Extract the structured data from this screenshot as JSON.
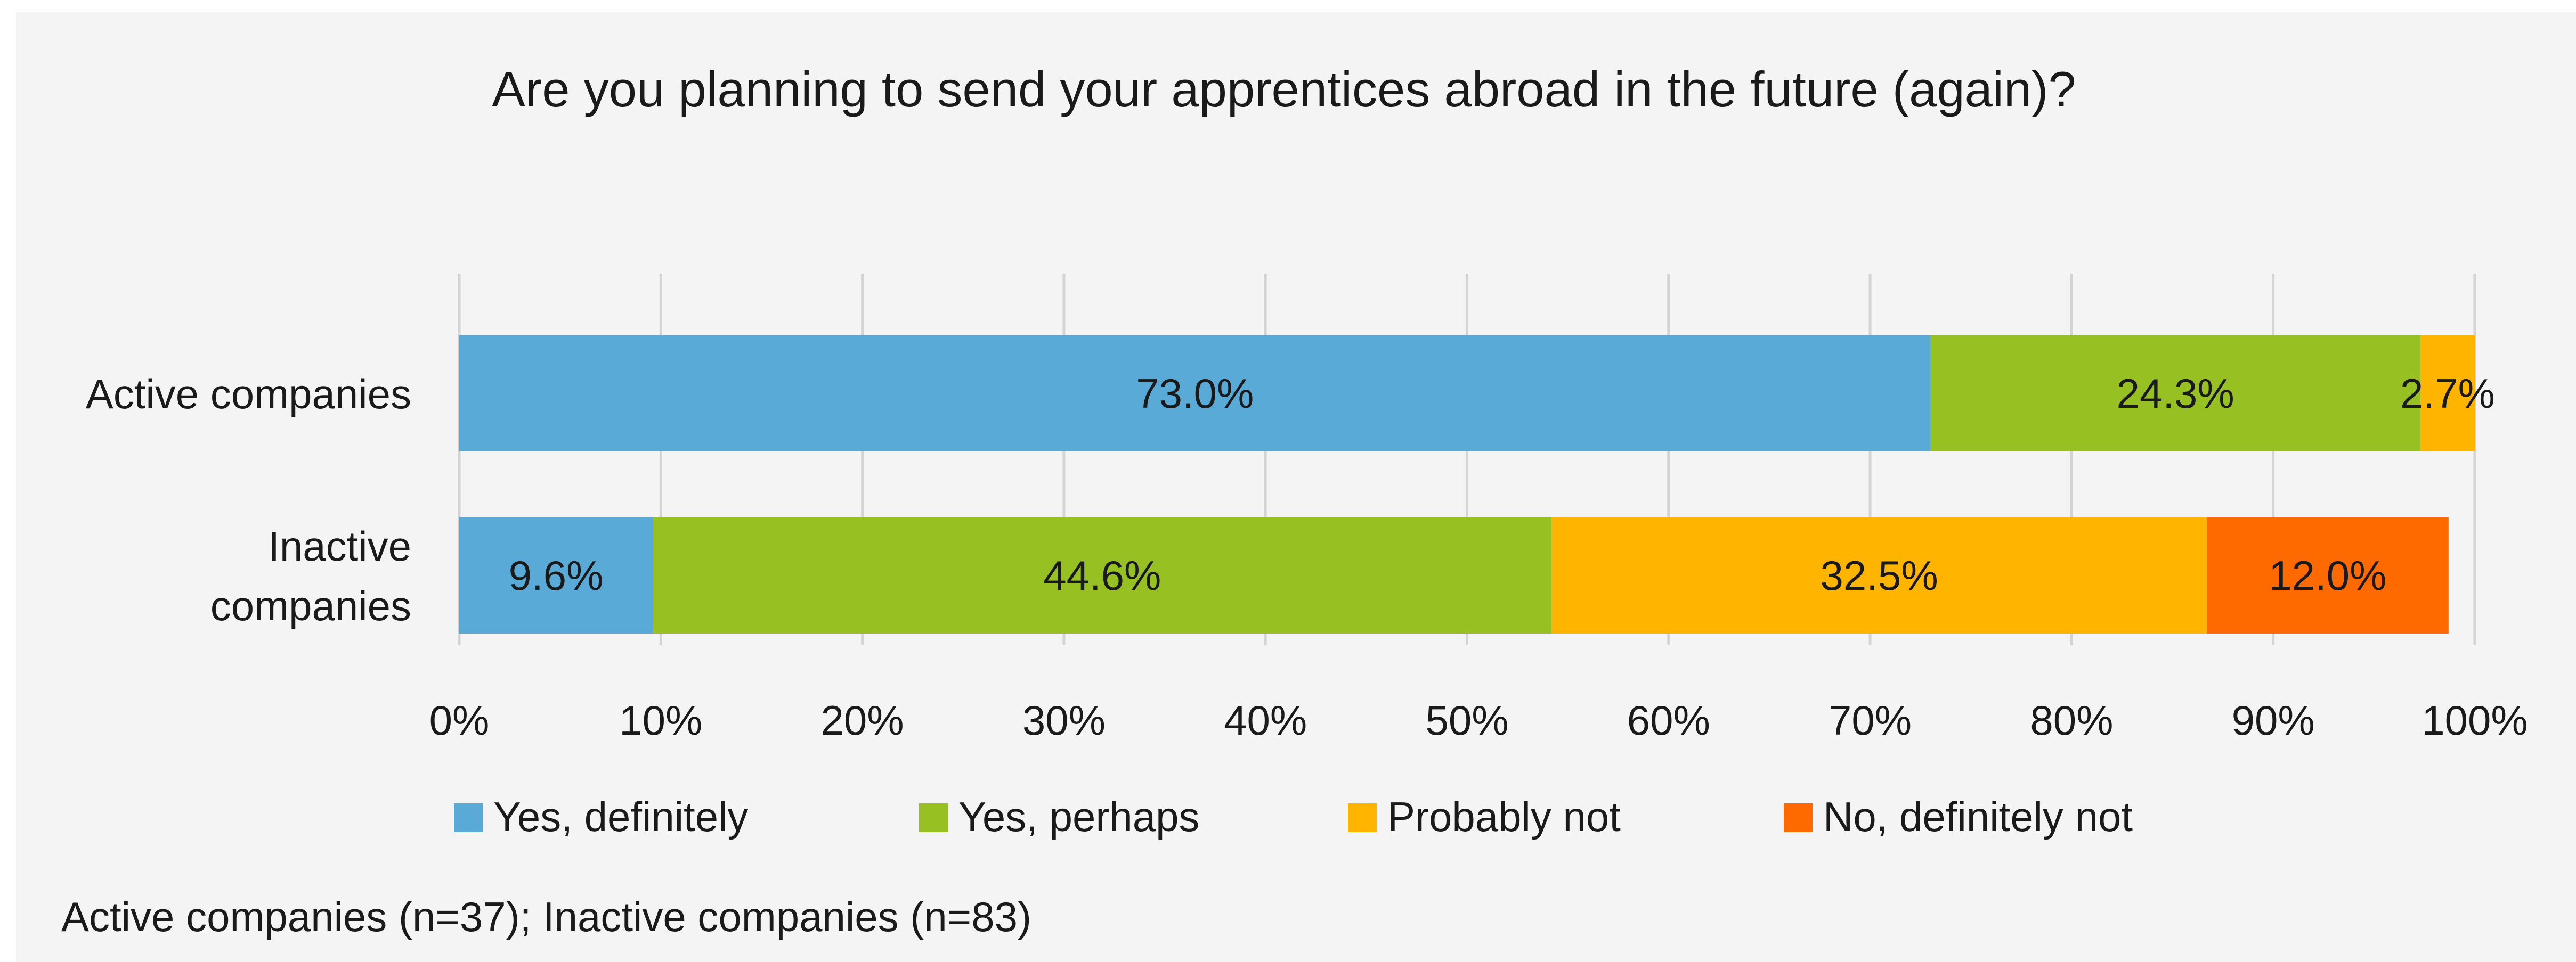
{
  "chart_data": {
    "type": "bar",
    "orientation": "horizontal",
    "stacked": true,
    "title": "Are you planning  to send your apprentices abroad in the future (again)?",
    "categories": [
      "Active companies",
      "Inactive companies"
    ],
    "category_label_lines": [
      [
        "Active companies"
      ],
      [
        "Inactive",
        "companies"
      ]
    ],
    "series": [
      {
        "name": "Yes, definitely",
        "color": "#5aaad8",
        "values": [
          73.0,
          9.6
        ],
        "labels": [
          "73.0%",
          "9.6%"
        ]
      },
      {
        "name": "Yes, perhaps",
        "color": "#97c122",
        "values": [
          24.3,
          44.6
        ],
        "labels": [
          "24.3%",
          "44.6%"
        ]
      },
      {
        "name": "Probably not",
        "color": "#ffb400",
        "values": [
          2.7,
          32.5
        ],
        "labels": [
          "2.7%",
          "32.5%"
        ]
      },
      {
        "name": "No, definitely not",
        "color": "#ff6a00",
        "values": [
          0,
          12.0
        ],
        "labels": [
          "",
          "12.0%"
        ]
      }
    ],
    "xlim": [
      0,
      100
    ],
    "xticks": [
      0,
      10,
      20,
      30,
      40,
      50,
      60,
      70,
      80,
      90,
      100
    ],
    "xtick_labels": [
      "0%",
      "10%",
      "20%",
      "30%",
      "40%",
      "50%",
      "60%",
      "70%",
      "80%",
      "90%",
      "100%"
    ],
    "grid": true,
    "legend_position": "bottom",
    "footnote": "Active companies (n=37); Inactive companies (n=83)"
  }
}
